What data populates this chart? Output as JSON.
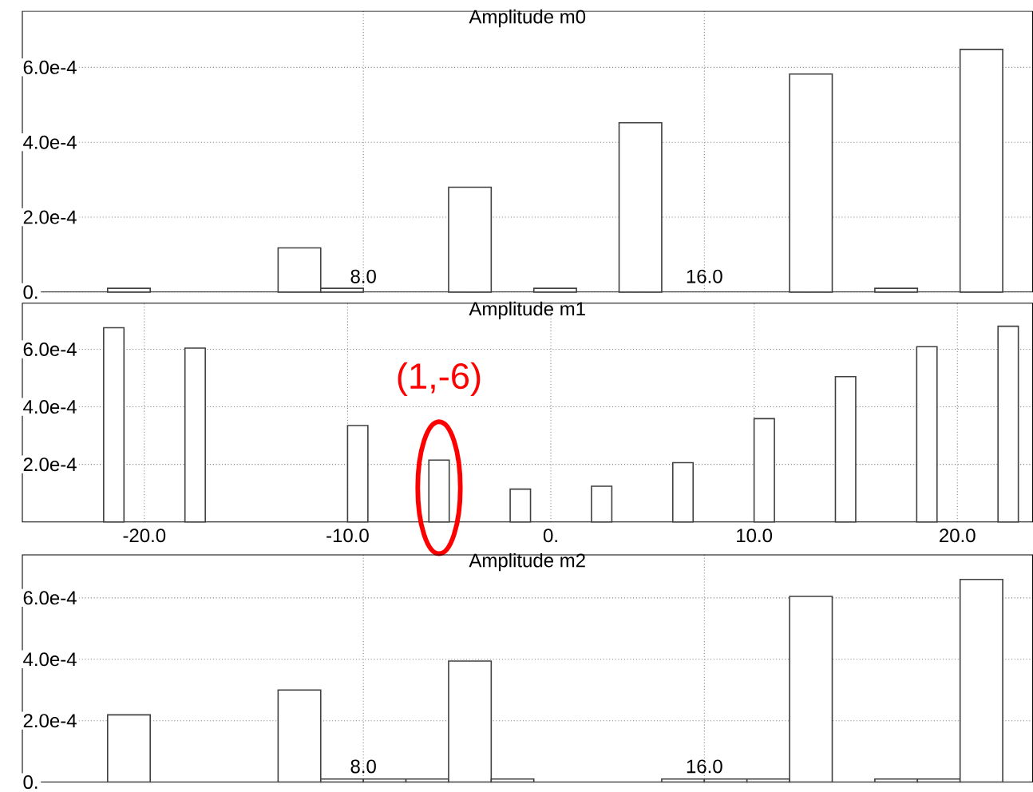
{
  "chart_data": [
    {
      "type": "histogram",
      "title": "Amplitude m0",
      "color": "#ffffff",
      "grid": true,
      "bins": [
        1,
        2,
        3,
        4,
        5,
        6,
        7,
        8,
        9,
        10,
        11,
        12,
        13,
        14,
        15,
        16,
        17,
        18,
        19,
        20,
        21,
        22,
        23
      ],
      "values": [
        0,
        1e-05,
        0,
        0,
        0,
        0.000118,
        1e-05,
        0,
        0,
        0.00028,
        0,
        1e-05,
        0,
        0.000452,
        0,
        0,
        0,
        0.000582,
        0,
        1e-05,
        0,
        0.000648
      ],
      "xlim": [
        0,
        23.7
      ],
      "ylim": [
        0,
        0.00075
      ],
      "xticks": [
        {
          "value": 8,
          "label": "8.0"
        },
        {
          "value": 16,
          "label": "16.0"
        }
      ],
      "yticks": [
        {
          "value": 0,
          "label": "0."
        },
        {
          "value": 0.0002,
          "label": "2.0e-4"
        },
        {
          "value": 0.0004,
          "label": "4.0e-4"
        },
        {
          "value": 0.0006,
          "label": "6.0e-4"
        }
      ]
    },
    {
      "type": "histogram",
      "title": "Amplitude m1",
      "color": "#ffffff",
      "grid": true,
      "bins": [
        -22,
        -21,
        -20,
        -19,
        -18,
        -17,
        -16,
        -15,
        -14,
        -13,
        -12,
        -11,
        -10,
        -9,
        -8,
        -7,
        -6,
        -5,
        -4,
        -3,
        -2,
        -1,
        0,
        1,
        2,
        3,
        4,
        5,
        6,
        7,
        8,
        9,
        10,
        11,
        12,
        13,
        14,
        15,
        16,
        17,
        18,
        19,
        20,
        21,
        22,
        23
      ],
      "values": [
        0.000675,
        0,
        0,
        0,
        0.000604,
        0,
        0,
        0,
        0,
        0,
        0,
        0,
        0.000335,
        0,
        0,
        0,
        0.000215,
        0,
        0,
        0,
        0.000114,
        0,
        0,
        0,
        0.000124,
        0,
        0,
        0,
        0.000206,
        0,
        0,
        0,
        0.000359,
        0,
        0,
        0,
        0.000505,
        0,
        0,
        0,
        0.000609,
        0,
        0,
        0,
        0.00068
      ],
      "xlim": [
        -26,
        23.7
      ],
      "ylim": [
        0,
        0.00076
      ],
      "xticks": [
        {
          "value": -20,
          "label": "-20.0"
        },
        {
          "value": -10,
          "label": "-10.0"
        },
        {
          "value": 0,
          "label": "0."
        },
        {
          "value": 10,
          "label": "10.0"
        },
        {
          "value": 20,
          "label": "20.0"
        }
      ],
      "yticks": [
        {
          "value": 0.0002,
          "label": "2.0e-4"
        },
        {
          "value": 0.0004,
          "label": "4.0e-4"
        },
        {
          "value": 0.0006,
          "label": "6.0e-4"
        }
      ],
      "annotations": [
        {
          "text": "(1,-6)",
          "x": -5.5,
          "y": 0.000215
        }
      ]
    },
    {
      "type": "histogram",
      "title": "Amplitude m2",
      "color": "#ffffff",
      "grid": true,
      "bins": [
        1,
        2,
        3,
        4,
        5,
        6,
        7,
        8,
        9,
        10,
        11,
        12,
        13,
        14,
        15,
        16,
        17,
        18,
        19,
        20,
        21,
        22,
        23
      ],
      "values": [
        0,
        0.000219,
        0,
        0,
        0,
        0.0003,
        1e-05,
        1e-05,
        1e-05,
        0.000394,
        1e-05,
        0,
        0,
        0,
        1e-05,
        1e-05,
        1e-05,
        0.000605,
        0,
        1e-05,
        1e-05,
        0.00066
      ],
      "xlim": [
        0,
        23.7
      ],
      "ylim": [
        0,
        0.00074
      ],
      "xticks": [
        {
          "value": 8,
          "label": "8.0"
        },
        {
          "value": 16,
          "label": "16.0"
        }
      ],
      "yticks": [
        {
          "value": 0,
          "label": "0."
        },
        {
          "value": 0.0002,
          "label": "2.0e-4"
        },
        {
          "value": 0.0004,
          "label": "4.0e-4"
        },
        {
          "value": 0.0006,
          "label": "6.0e-4"
        }
      ]
    }
  ]
}
